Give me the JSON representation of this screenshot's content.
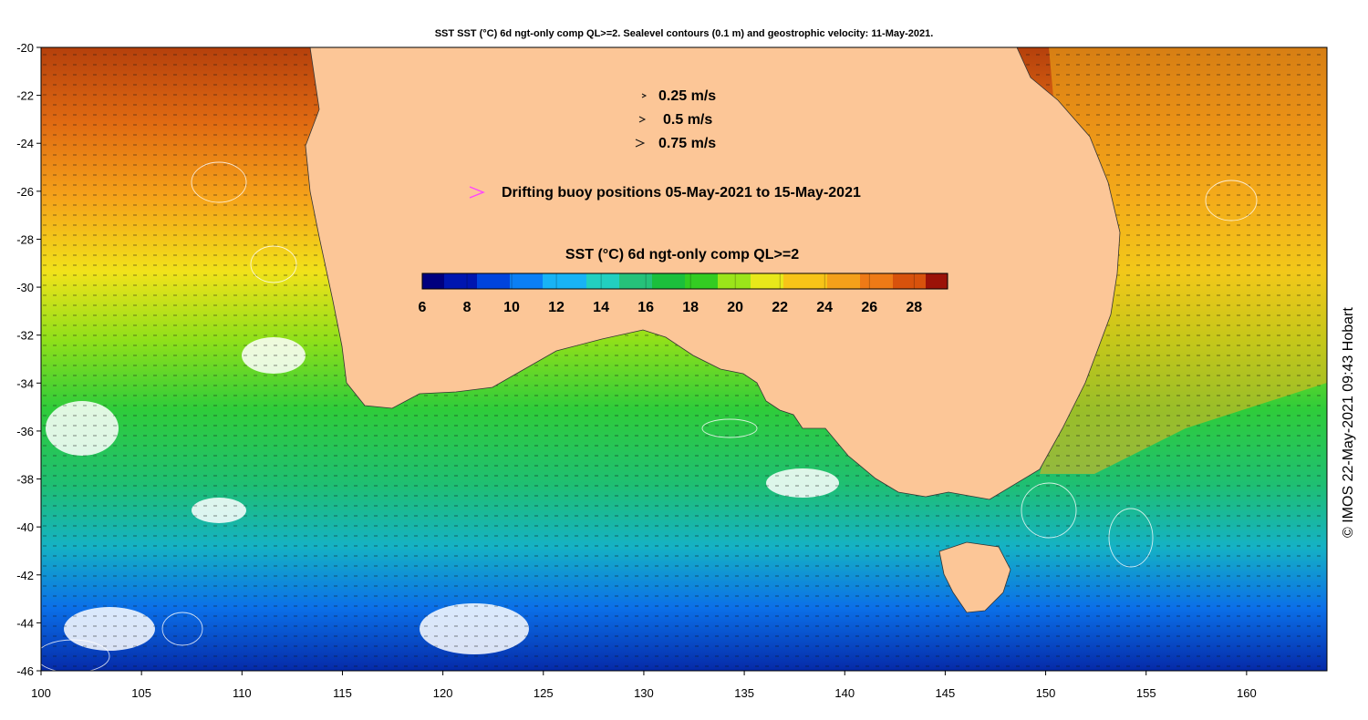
{
  "title": "SST SST (°C) 6d ngt-only comp QL>=2. Sealevel contours (0.1 m) and geostrophic velocity: 11-May-2021.",
  "credit": "© IMOS 22-May-2021 09:43 Hobart",
  "axes": {
    "x_ticks": [
      "100",
      "105",
      "110",
      "115",
      "120",
      "125",
      "130",
      "135",
      "140",
      "145",
      "150",
      "155",
      "160"
    ],
    "y_ticks": [
      "-20",
      "-22",
      "-24",
      "-26",
      "-28",
      "-30",
      "-32",
      "-34",
      "-36",
      "-38",
      "-40",
      "-42",
      "-44",
      "-46"
    ],
    "xlim": [
      100,
      164
    ],
    "ylim": [
      -46,
      -20
    ]
  },
  "velocity_legend": [
    {
      "label": "0.25 m/s"
    },
    {
      "label": "0.5 m/s"
    },
    {
      "label": "0.75 m/s"
    }
  ],
  "buoy_legend": {
    "label": "Drifting buoy positions 05-May-2021 to 15-May-2021",
    "color": "#ff44ff"
  },
  "colorbar": {
    "title": "SST (°C) 6d ngt-only comp QL>=2",
    "ticks": [
      "6",
      "8",
      "10",
      "12",
      "14",
      "16",
      "18",
      "20",
      "22",
      "24",
      "26",
      "28"
    ],
    "range": [
      6,
      29.5
    ],
    "colors": [
      "#00007f",
      "#0016b0",
      "#0044dd",
      "#0b7ff5",
      "#18b3f5",
      "#22cfc0",
      "#26c27a",
      "#1bbf3c",
      "#33cc22",
      "#9be51a",
      "#e8e81a",
      "#f7c418",
      "#f4a01a",
      "#ee7a16",
      "#d8520c",
      "#9b1208"
    ]
  },
  "land_color": "#fcc697"
}
